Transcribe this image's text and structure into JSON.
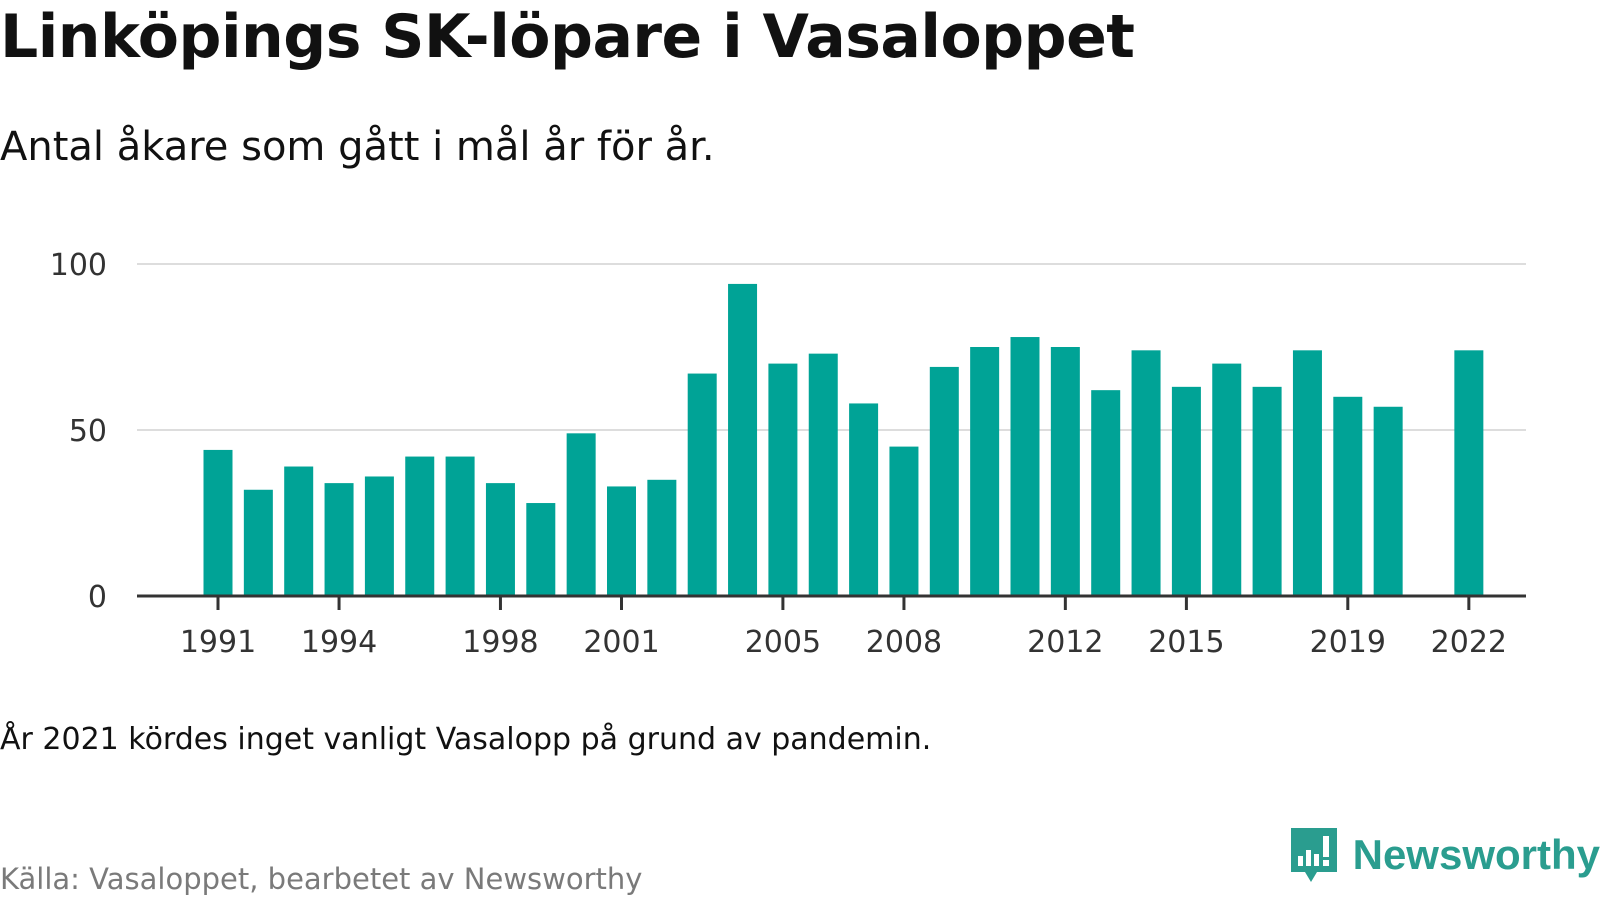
{
  "title": "Linköpings SK-löpare i Vasaloppet",
  "subtitle": "Antal åkare som gått i mål år för år.",
  "note": "År 2021 kördes inget vanligt Vasalopp på grund av pandemin.",
  "source": "Källa: Vasaloppet, bearbetet av Newsworthy",
  "brand": {
    "name": "Newsworthy",
    "icon": "newsworthy-logo-icon"
  },
  "colors": {
    "bar": "#00a396",
    "axis": "#333333",
    "grid": "#dddddd",
    "brand": "#2a9d8f"
  },
  "chart_data": {
    "type": "bar",
    "title": "Linköpings SK-löpare i Vasaloppet",
    "subtitle": "Antal åkare som gått i mål år för år.",
    "xlabel": "",
    "ylabel": "",
    "x": [
      1991,
      1992,
      1993,
      1994,
      1995,
      1996,
      1997,
      1998,
      1999,
      2000,
      2001,
      2002,
      2003,
      2004,
      2005,
      2006,
      2007,
      2008,
      2009,
      2010,
      2011,
      2012,
      2013,
      2014,
      2015,
      2016,
      2017,
      2018,
      2019,
      2020,
      2021,
      2022
    ],
    "values": [
      44,
      32,
      39,
      34,
      36,
      42,
      42,
      34,
      28,
      49,
      33,
      35,
      67,
      94,
      70,
      73,
      58,
      45,
      69,
      75,
      78,
      75,
      62,
      74,
      63,
      70,
      63,
      74,
      60,
      57,
      null,
      74
    ],
    "x_ticks": [
      "1991",
      "1994",
      "1998",
      "2001",
      "2005",
      "2008",
      "2012",
      "2015",
      "2019",
      "2022"
    ],
    "y_ticks": [
      0,
      50,
      100
    ],
    "ylim": [
      0,
      100
    ],
    "grid": "horizontal"
  }
}
